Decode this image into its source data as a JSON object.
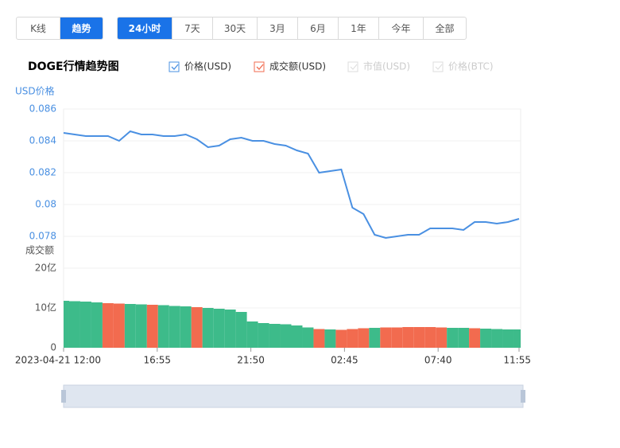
{
  "tabs": [
    "K线",
    "趋势"
  ],
  "active_tab": 1,
  "ranges": [
    "24小时",
    "7天",
    "30天",
    "3月",
    "6月",
    "1年",
    "今年",
    "全部"
  ],
  "active_range": 0,
  "chart_data": {
    "type": "line",
    "title": "DOGE行情趋势图",
    "y_label": "USD价格",
    "y2_label": "成交额",
    "inactive_legend": [
      "市值(USD)",
      "价格(BTC)"
    ],
    "x": [
      0,
      35,
      70,
      105,
      140,
      175,
      210,
      245,
      280,
      315,
      350,
      385,
      420,
      455,
      490,
      525,
      560,
      595,
      630,
      665,
      700,
      735,
      770,
      805,
      840,
      875,
      910,
      945,
      980,
      1015,
      1050,
      1085,
      1120,
      1155,
      1190,
      1225,
      1260,
      1295,
      1330,
      1365,
      1400,
      1435
    ],
    "xlim": [
      0,
      1435
    ],
    "xticks": [
      {
        "value": 0,
        "label": "2023-04-21 12:00"
      },
      {
        "value": 295,
        "label": "16:55"
      },
      {
        "value": 590,
        "label": "21:50"
      },
      {
        "value": 885,
        "label": "02:45"
      },
      {
        "value": 1180,
        "label": "07:40"
      },
      {
        "value": 1435,
        "label": "11:55"
      }
    ],
    "ylim": [
      0.0775,
      0.086
    ],
    "yticks": [
      0.078,
      0.08,
      0.082,
      0.084,
      0.086
    ],
    "y2lim": [
      0,
      20
    ],
    "y2ticks": [
      0,
      {
        "value": 10,
        "label": "10亿"
      },
      {
        "value": 20,
        "label": "20亿"
      }
    ],
    "grid": true,
    "series": [
      {
        "name": "价格(USD)",
        "type": "line",
        "color": "#4a90e2",
        "values": [
          0.0845,
          0.0844,
          0.0843,
          0.0843,
          0.0843,
          0.084,
          0.0846,
          0.0844,
          0.0844,
          0.0843,
          0.0843,
          0.0844,
          0.0841,
          0.0836,
          0.0837,
          0.0841,
          0.0842,
          0.084,
          0.084,
          0.0838,
          0.0837,
          0.0834,
          0.0832,
          0.082,
          0.0821,
          0.0822,
          0.0798,
          0.0794,
          0.0781,
          0.0779,
          0.078,
          0.0781,
          0.0781,
          0.0785,
          0.0785,
          0.0785,
          0.0784,
          0.0789,
          0.0789,
          0.0788,
          0.0789,
          0.0791
        ]
      },
      {
        "name": "成交额(USD)",
        "type": "bar",
        "axis": "y2",
        "color": "#f26b4f",
        "values": [
          11.8,
          11.7,
          11.6,
          11.4,
          11.2,
          11.1,
          11.0,
          10.9,
          10.8,
          10.7,
          10.5,
          10.4,
          10.2,
          10.0,
          9.8,
          9.6,
          9.0,
          6.6,
          6.2,
          6.0,
          5.9,
          5.6,
          5.1,
          4.7,
          4.6,
          4.5,
          4.7,
          4.9,
          5.0,
          5.1,
          5.1,
          5.2,
          5.2,
          5.2,
          5.1,
          5.0,
          5.0,
          4.9,
          4.8,
          4.7,
          4.6,
          4.6
        ],
        "colors": [
          "#3dbb8a",
          "#3dbb8a",
          "#3dbb8a",
          "#3dbb8a",
          "#f26b4f",
          "#f26b4f",
          "#3dbb8a",
          "#3dbb8a",
          "#f26b4f",
          "#3dbb8a",
          "#3dbb8a",
          "#3dbb8a",
          "#f26b4f",
          "#3dbb8a",
          "#3dbb8a",
          "#3dbb8a",
          "#3dbb8a",
          "#3dbb8a",
          "#3dbb8a",
          "#3dbb8a",
          "#3dbb8a",
          "#3dbb8a",
          "#3dbb8a",
          "#f26b4f",
          "#3dbb8a",
          "#f26b4f",
          "#f26b4f",
          "#f26b4f",
          "#3dbb8a",
          "#f26b4f",
          "#f26b4f",
          "#f26b4f",
          "#f26b4f",
          "#f26b4f",
          "#f26b4f",
          "#3dbb8a",
          "#3dbb8a",
          "#f26b4f",
          "#3dbb8a",
          "#3dbb8a",
          "#3dbb8a",
          "#3dbb8a"
        ]
      }
    ]
  }
}
